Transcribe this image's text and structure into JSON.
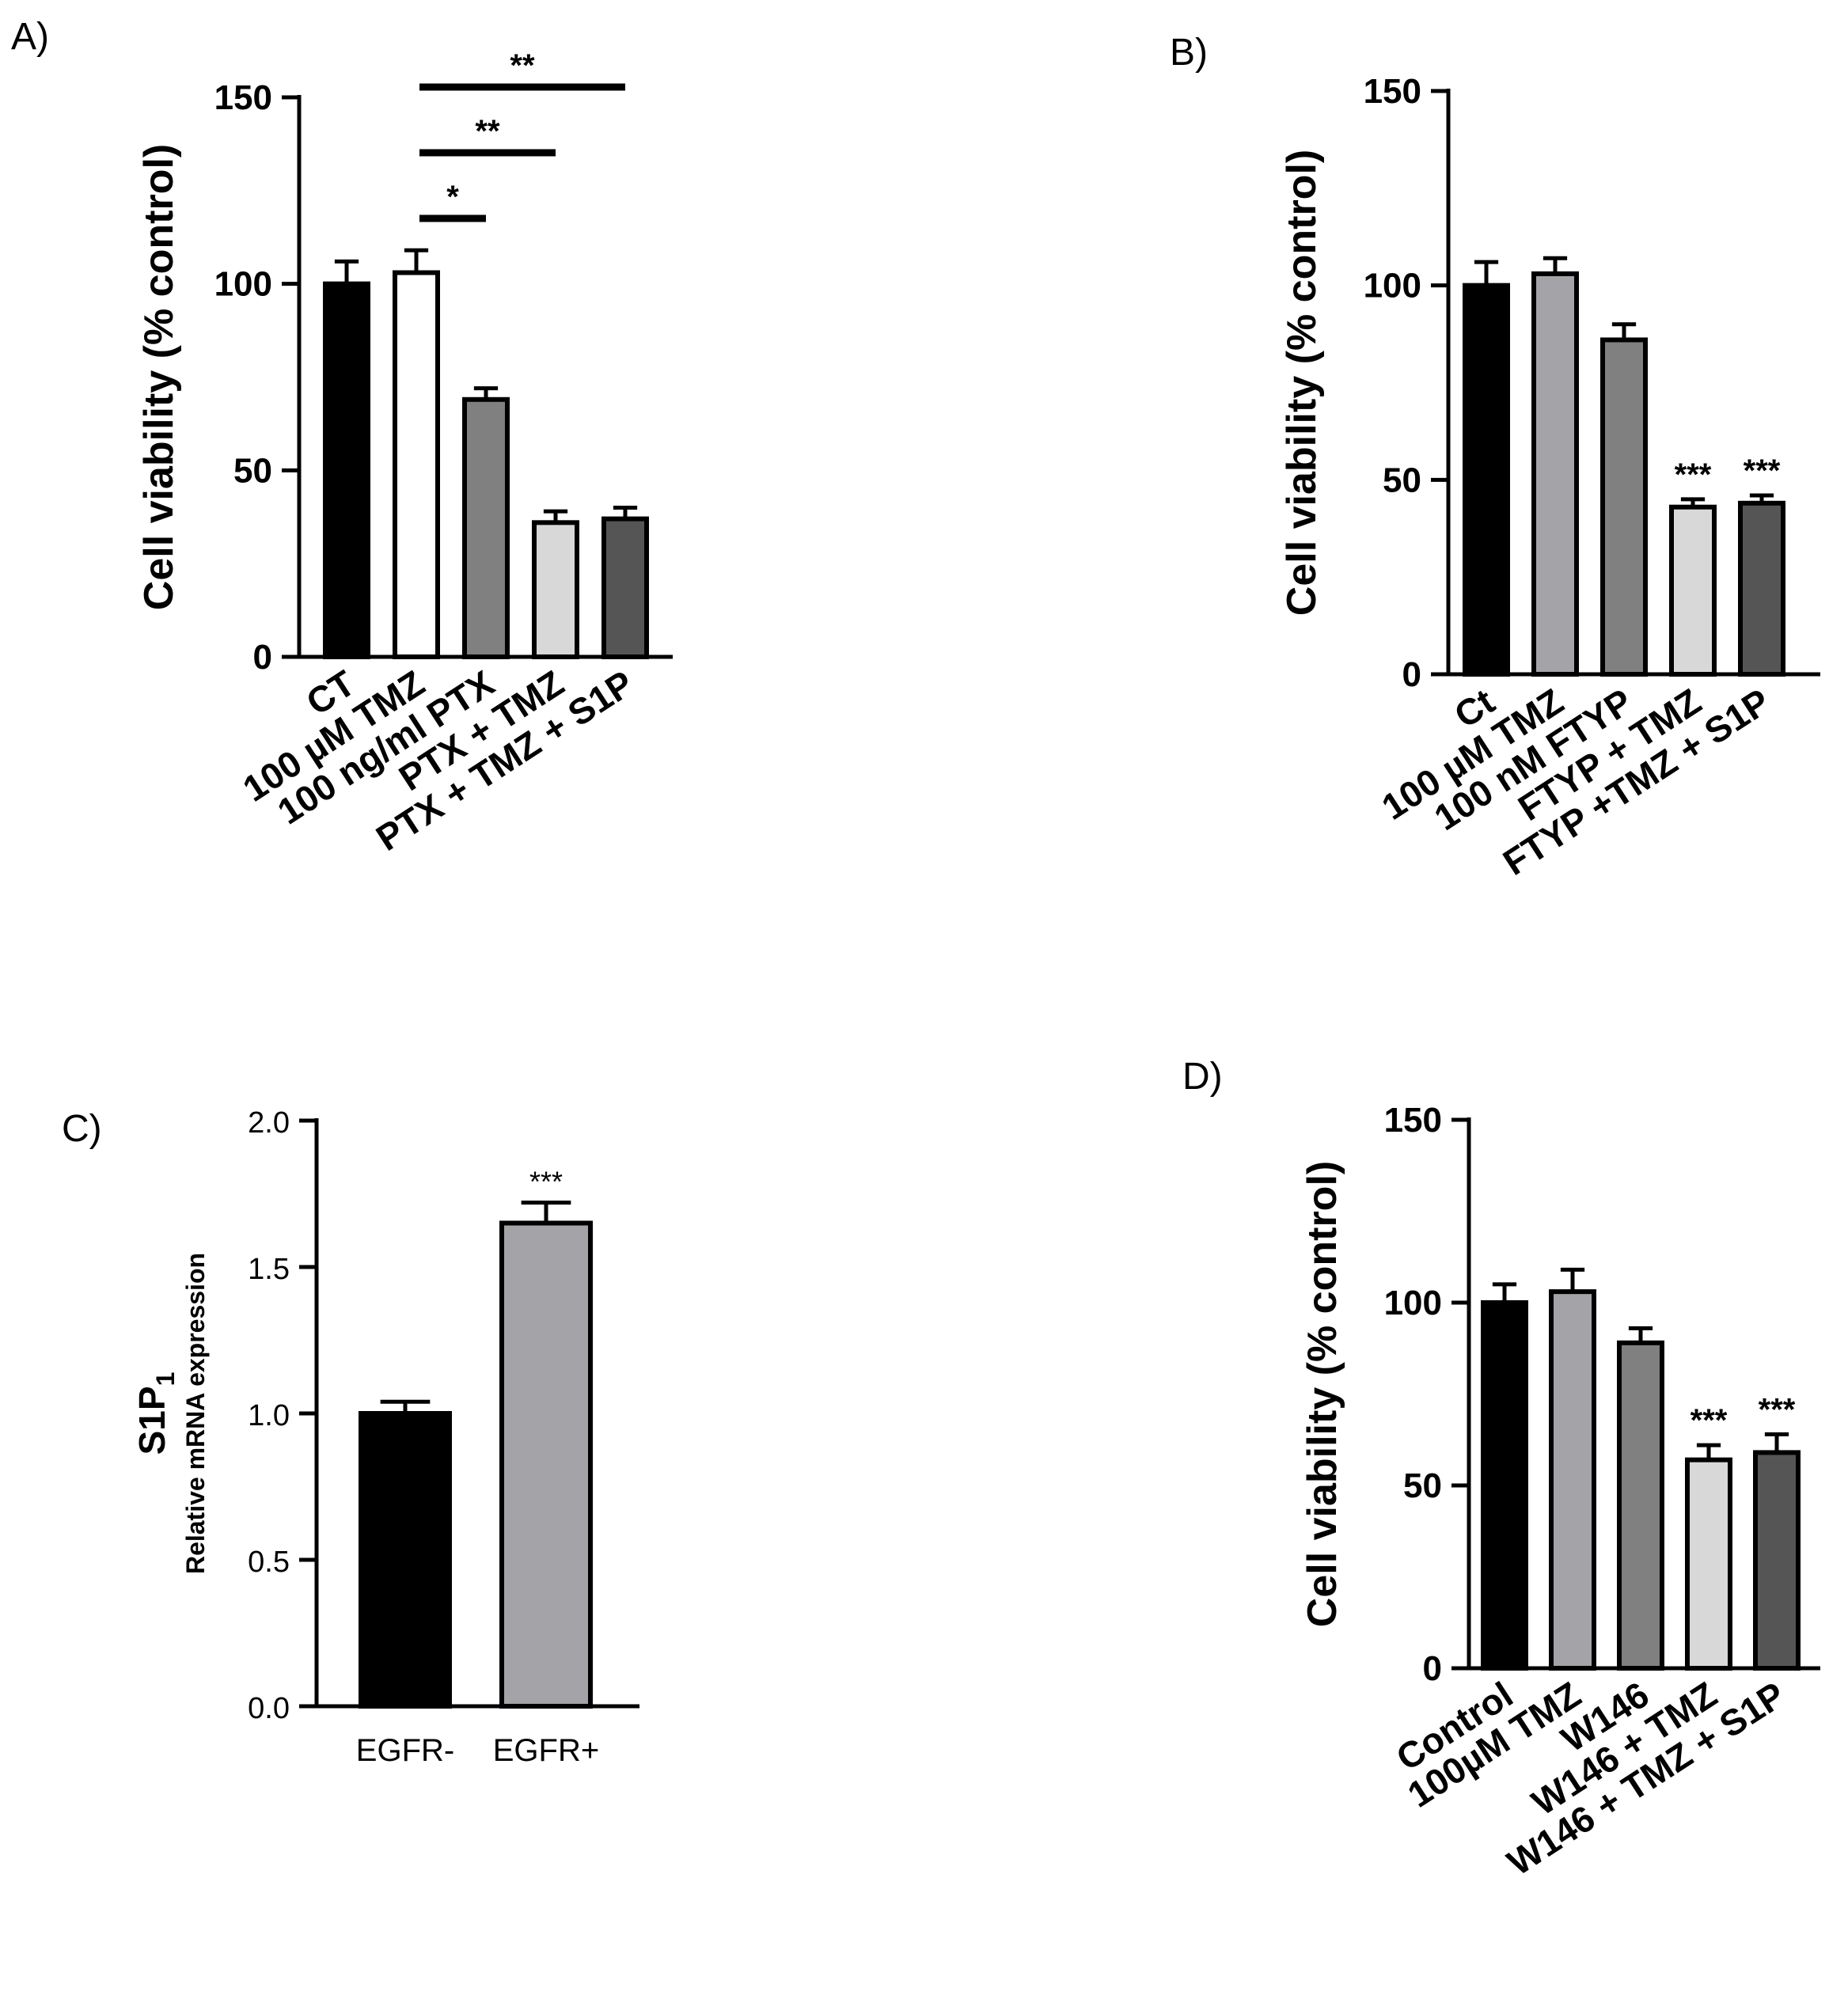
{
  "chart_data": [
    {
      "panel": "A)",
      "type": "bar",
      "ylabel": "Cell viability (% control)",
      "ylim": [
        0,
        150
      ],
      "yticks": [
        "0",
        "50",
        "100",
        "150"
      ],
      "categories": [
        "CT",
        "100 µM TMZ",
        "100 ng/ml PTX",
        "PTX + TMZ",
        "PTX + TMZ + S1P"
      ],
      "values": [
        100,
        103,
        69,
        36,
        37
      ],
      "errors": [
        6,
        6,
        3,
        3,
        3
      ],
      "colors": [
        "#000000",
        "#ffffff",
        "#808080",
        "#d8d8d8",
        "#555555"
      ],
      "brackets": [
        {
          "from": 1,
          "to": 2,
          "label": "*"
        },
        {
          "from": 1,
          "to": 3,
          "label": "**"
        },
        {
          "from": 1,
          "to": 4,
          "label": "**"
        }
      ],
      "bar_annotations": [
        "",
        "",
        "",
        "",
        ""
      ]
    },
    {
      "panel": "B)",
      "type": "bar",
      "ylabel": "Cell viability (% control)",
      "ylim": [
        0,
        150
      ],
      "yticks": [
        "0",
        "50",
        "100",
        "150"
      ],
      "categories": [
        "Ct",
        "100 µM TMZ",
        "100 nM FTYP",
        "FTYP + TMZ",
        "FTYP +TMZ + S1P"
      ],
      "values": [
        100,
        103,
        86,
        43,
        44
      ],
      "errors": [
        6,
        4,
        4,
        2,
        2
      ],
      "colors": [
        "#000000",
        "#a3a3a8",
        "#808080",
        "#d8d8d8",
        "#555555"
      ],
      "brackets": [],
      "bar_annotations": [
        "",
        "",
        "",
        "***",
        "***"
      ]
    },
    {
      "panel": "C)",
      "type": "bar",
      "ylabel_main": "S1P",
      "ylabel_sub_index": "1",
      "ylabel_secondary": "Relative mRNA expression",
      "ylim": [
        0,
        2.0
      ],
      "yticks": [
        "0.0",
        "0.5",
        "1.0",
        "1.5",
        "2.0"
      ],
      "categories": [
        "EGFR-",
        "EGFR+"
      ],
      "values": [
        1.0,
        1.65
      ],
      "errors": [
        0.04,
        0.07
      ],
      "colors": [
        "#000000",
        "#a3a3a8"
      ],
      "brackets": [],
      "bar_annotations": [
        "",
        "***"
      ]
    },
    {
      "panel": "D)",
      "type": "bar",
      "ylabel": "Cell viability (% control)",
      "ylim": [
        0,
        150
      ],
      "yticks": [
        "0",
        "50",
        "100",
        "150"
      ],
      "categories": [
        "Control",
        "100µM TMZ",
        "W146",
        "W146 + TMZ",
        "W146 + TMZ + S1P"
      ],
      "values": [
        100,
        103,
        89,
        57,
        59
      ],
      "errors": [
        5,
        6,
        4,
        4,
        5
      ],
      "colors": [
        "#000000",
        "#a3a3a8",
        "#808080",
        "#d8d8d8",
        "#555555"
      ],
      "brackets": [],
      "bar_annotations": [
        "",
        "",
        "",
        "***",
        "***"
      ]
    }
  ]
}
